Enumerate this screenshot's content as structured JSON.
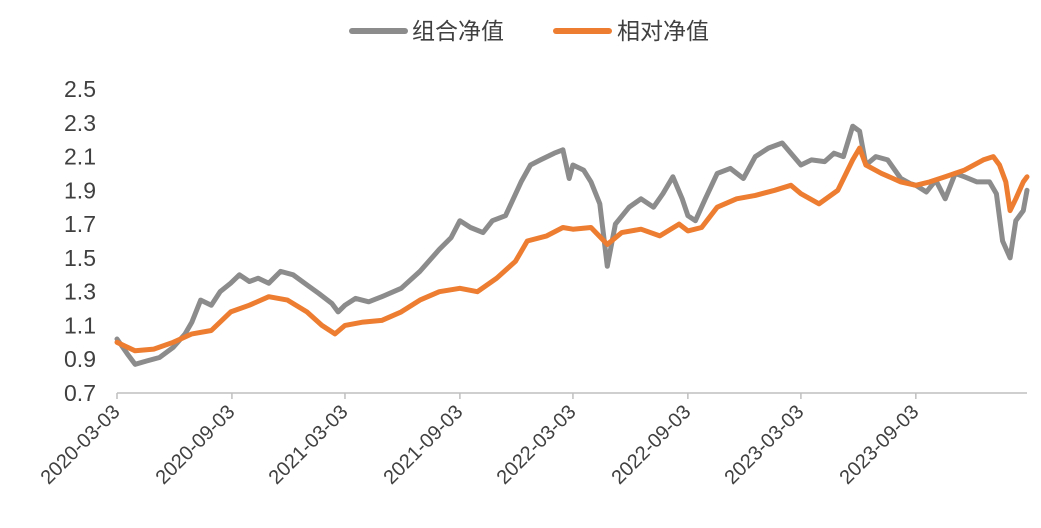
{
  "chart_data": {
    "type": "line",
    "title": "",
    "xlabel": "",
    "ylabel": "",
    "ylim": [
      0.7,
      2.5
    ],
    "yticks": [
      "2.5",
      "2.3",
      "2.1",
      "1.9",
      "1.7",
      "1.5",
      "1.3",
      "1.1",
      "0.9",
      "0.7"
    ],
    "xticks": [
      "2020-03-03",
      "2020-09-03",
      "2021-03-03",
      "2021-09-03",
      "2022-03-03",
      "2022-09-03",
      "2023-03-03",
      "2023-09-03"
    ],
    "x_range": [
      "2020-03-03",
      "2024-02-28"
    ],
    "legend_position": "top-center",
    "grid": false,
    "series": [
      {
        "name": "组合净值",
        "color": "#8C8C8C",
        "points": [
          [
            "2020-03-03",
            1.02
          ],
          [
            "2020-03-20",
            0.93
          ],
          [
            "2020-04-01",
            0.87
          ],
          [
            "2020-04-20",
            0.89
          ],
          [
            "2020-05-10",
            0.91
          ],
          [
            "2020-06-01",
            0.97
          ],
          [
            "2020-06-20",
            1.05
          ],
          [
            "2020-07-01",
            1.12
          ],
          [
            "2020-07-15",
            1.25
          ],
          [
            "2020-08-01",
            1.22
          ],
          [
            "2020-08-15",
            1.3
          ],
          [
            "2020-09-01",
            1.35
          ],
          [
            "2020-09-15",
            1.4
          ],
          [
            "2020-10-01",
            1.36
          ],
          [
            "2020-10-15",
            1.38
          ],
          [
            "2020-11-01",
            1.35
          ],
          [
            "2020-11-20",
            1.42
          ],
          [
            "2020-12-10",
            1.4
          ],
          [
            "2021-01-01",
            1.34
          ],
          [
            "2021-01-20",
            1.29
          ],
          [
            "2021-02-10",
            1.23
          ],
          [
            "2021-02-20",
            1.18
          ],
          [
            "2021-03-03",
            1.22
          ],
          [
            "2021-03-20",
            1.26
          ],
          [
            "2021-04-10",
            1.24
          ],
          [
            "2021-05-01",
            1.27
          ],
          [
            "2021-06-01",
            1.32
          ],
          [
            "2021-07-01",
            1.42
          ],
          [
            "2021-08-01",
            1.55
          ],
          [
            "2021-08-20",
            1.62
          ],
          [
            "2021-09-03",
            1.72
          ],
          [
            "2021-09-20",
            1.68
          ],
          [
            "2021-10-10",
            1.65
          ],
          [
            "2021-10-25",
            1.72
          ],
          [
            "2021-11-15",
            1.75
          ],
          [
            "2021-12-10",
            1.95
          ],
          [
            "2021-12-25",
            2.05
          ],
          [
            "2022-01-10",
            2.08
          ],
          [
            "2022-02-01",
            2.12
          ],
          [
            "2022-02-15",
            2.14
          ],
          [
            "2022-02-25",
            1.97
          ],
          [
            "2022-03-03",
            2.05
          ],
          [
            "2022-03-20",
            2.02
          ],
          [
            "2022-04-01",
            1.95
          ],
          [
            "2022-04-15",
            1.82
          ],
          [
            "2022-04-27",
            1.45
          ],
          [
            "2022-05-10",
            1.7
          ],
          [
            "2022-06-01",
            1.8
          ],
          [
            "2022-06-20",
            1.85
          ],
          [
            "2022-07-10",
            1.8
          ],
          [
            "2022-07-25",
            1.88
          ],
          [
            "2022-08-10",
            1.98
          ],
          [
            "2022-08-25",
            1.85
          ],
          [
            "2022-09-03",
            1.75
          ],
          [
            "2022-09-15",
            1.72
          ],
          [
            "2022-10-01",
            1.85
          ],
          [
            "2022-10-20",
            2.0
          ],
          [
            "2022-11-10",
            2.03
          ],
          [
            "2022-12-01",
            1.97
          ],
          [
            "2022-12-20",
            2.1
          ],
          [
            "2023-01-10",
            2.15
          ],
          [
            "2023-02-01",
            2.18
          ],
          [
            "2023-02-15",
            2.12
          ],
          [
            "2023-03-03",
            2.05
          ],
          [
            "2023-03-20",
            2.08
          ],
          [
            "2023-04-10",
            2.07
          ],
          [
            "2023-04-25",
            2.12
          ],
          [
            "2023-05-10",
            2.1
          ],
          [
            "2023-05-25",
            2.28
          ],
          [
            "2023-06-05",
            2.25
          ],
          [
            "2023-06-15",
            2.05
          ],
          [
            "2023-07-01",
            2.1
          ],
          [
            "2023-07-20",
            2.08
          ],
          [
            "2023-08-10",
            1.97
          ],
          [
            "2023-08-25",
            1.94
          ],
          [
            "2023-09-03",
            1.93
          ],
          [
            "2023-09-20",
            1.89
          ],
          [
            "2023-10-05",
            1.96
          ],
          [
            "2023-10-20",
            1.85
          ],
          [
            "2023-11-05",
            2.0
          ],
          [
            "2023-11-20",
            1.98
          ],
          [
            "2023-12-10",
            1.95
          ],
          [
            "2023-12-30",
            1.95
          ],
          [
            "2024-01-10",
            1.88
          ],
          [
            "2024-01-20",
            1.6
          ],
          [
            "2024-02-01",
            1.5
          ],
          [
            "2024-02-10",
            1.72
          ],
          [
            "2024-02-22",
            1.78
          ],
          [
            "2024-02-28",
            1.9
          ]
        ]
      },
      {
        "name": "相对净值",
        "color": "#ED7D31",
        "points": [
          [
            "2020-03-03",
            1.0
          ],
          [
            "2020-04-01",
            0.95
          ],
          [
            "2020-05-01",
            0.96
          ],
          [
            "2020-06-01",
            1.0
          ],
          [
            "2020-07-01",
            1.05
          ],
          [
            "2020-08-01",
            1.07
          ],
          [
            "2020-09-01",
            1.18
          ],
          [
            "2020-10-01",
            1.22
          ],
          [
            "2020-11-01",
            1.27
          ],
          [
            "2020-12-01",
            1.25
          ],
          [
            "2021-01-01",
            1.18
          ],
          [
            "2021-01-25",
            1.1
          ],
          [
            "2021-02-15",
            1.05
          ],
          [
            "2021-03-03",
            1.1
          ],
          [
            "2021-04-01",
            1.12
          ],
          [
            "2021-05-01",
            1.13
          ],
          [
            "2021-06-01",
            1.18
          ],
          [
            "2021-07-01",
            1.25
          ],
          [
            "2021-08-01",
            1.3
          ],
          [
            "2021-09-03",
            1.32
          ],
          [
            "2021-10-01",
            1.3
          ],
          [
            "2021-11-01",
            1.38
          ],
          [
            "2021-12-01",
            1.48
          ],
          [
            "2021-12-20",
            1.6
          ],
          [
            "2022-01-20",
            1.63
          ],
          [
            "2022-02-15",
            1.68
          ],
          [
            "2022-03-03",
            1.67
          ],
          [
            "2022-04-01",
            1.68
          ],
          [
            "2022-04-27",
            1.58
          ],
          [
            "2022-05-20",
            1.65
          ],
          [
            "2022-06-20",
            1.67
          ],
          [
            "2022-07-20",
            1.63
          ],
          [
            "2022-08-20",
            1.7
          ],
          [
            "2022-09-03",
            1.66
          ],
          [
            "2022-09-25",
            1.68
          ],
          [
            "2022-10-20",
            1.8
          ],
          [
            "2022-11-20",
            1.85
          ],
          [
            "2022-12-20",
            1.87
          ],
          [
            "2023-01-20",
            1.9
          ],
          [
            "2023-02-15",
            1.93
          ],
          [
            "2023-03-03",
            1.88
          ],
          [
            "2023-04-01",
            1.82
          ],
          [
            "2023-05-01",
            1.9
          ],
          [
            "2023-05-25",
            2.08
          ],
          [
            "2023-06-05",
            2.15
          ],
          [
            "2023-06-15",
            2.05
          ],
          [
            "2023-07-10",
            2.0
          ],
          [
            "2023-08-10",
            1.95
          ],
          [
            "2023-09-03",
            1.93
          ],
          [
            "2023-09-25",
            1.95
          ],
          [
            "2023-10-20",
            1.98
          ],
          [
            "2023-11-20",
            2.02
          ],
          [
            "2023-12-20",
            2.08
          ],
          [
            "2024-01-05",
            2.1
          ],
          [
            "2024-01-15",
            2.05
          ],
          [
            "2024-01-25",
            1.95
          ],
          [
            "2024-02-01",
            1.78
          ],
          [
            "2024-02-10",
            1.85
          ],
          [
            "2024-02-22",
            1.95
          ],
          [
            "2024-02-28",
            1.98
          ]
        ]
      }
    ]
  }
}
